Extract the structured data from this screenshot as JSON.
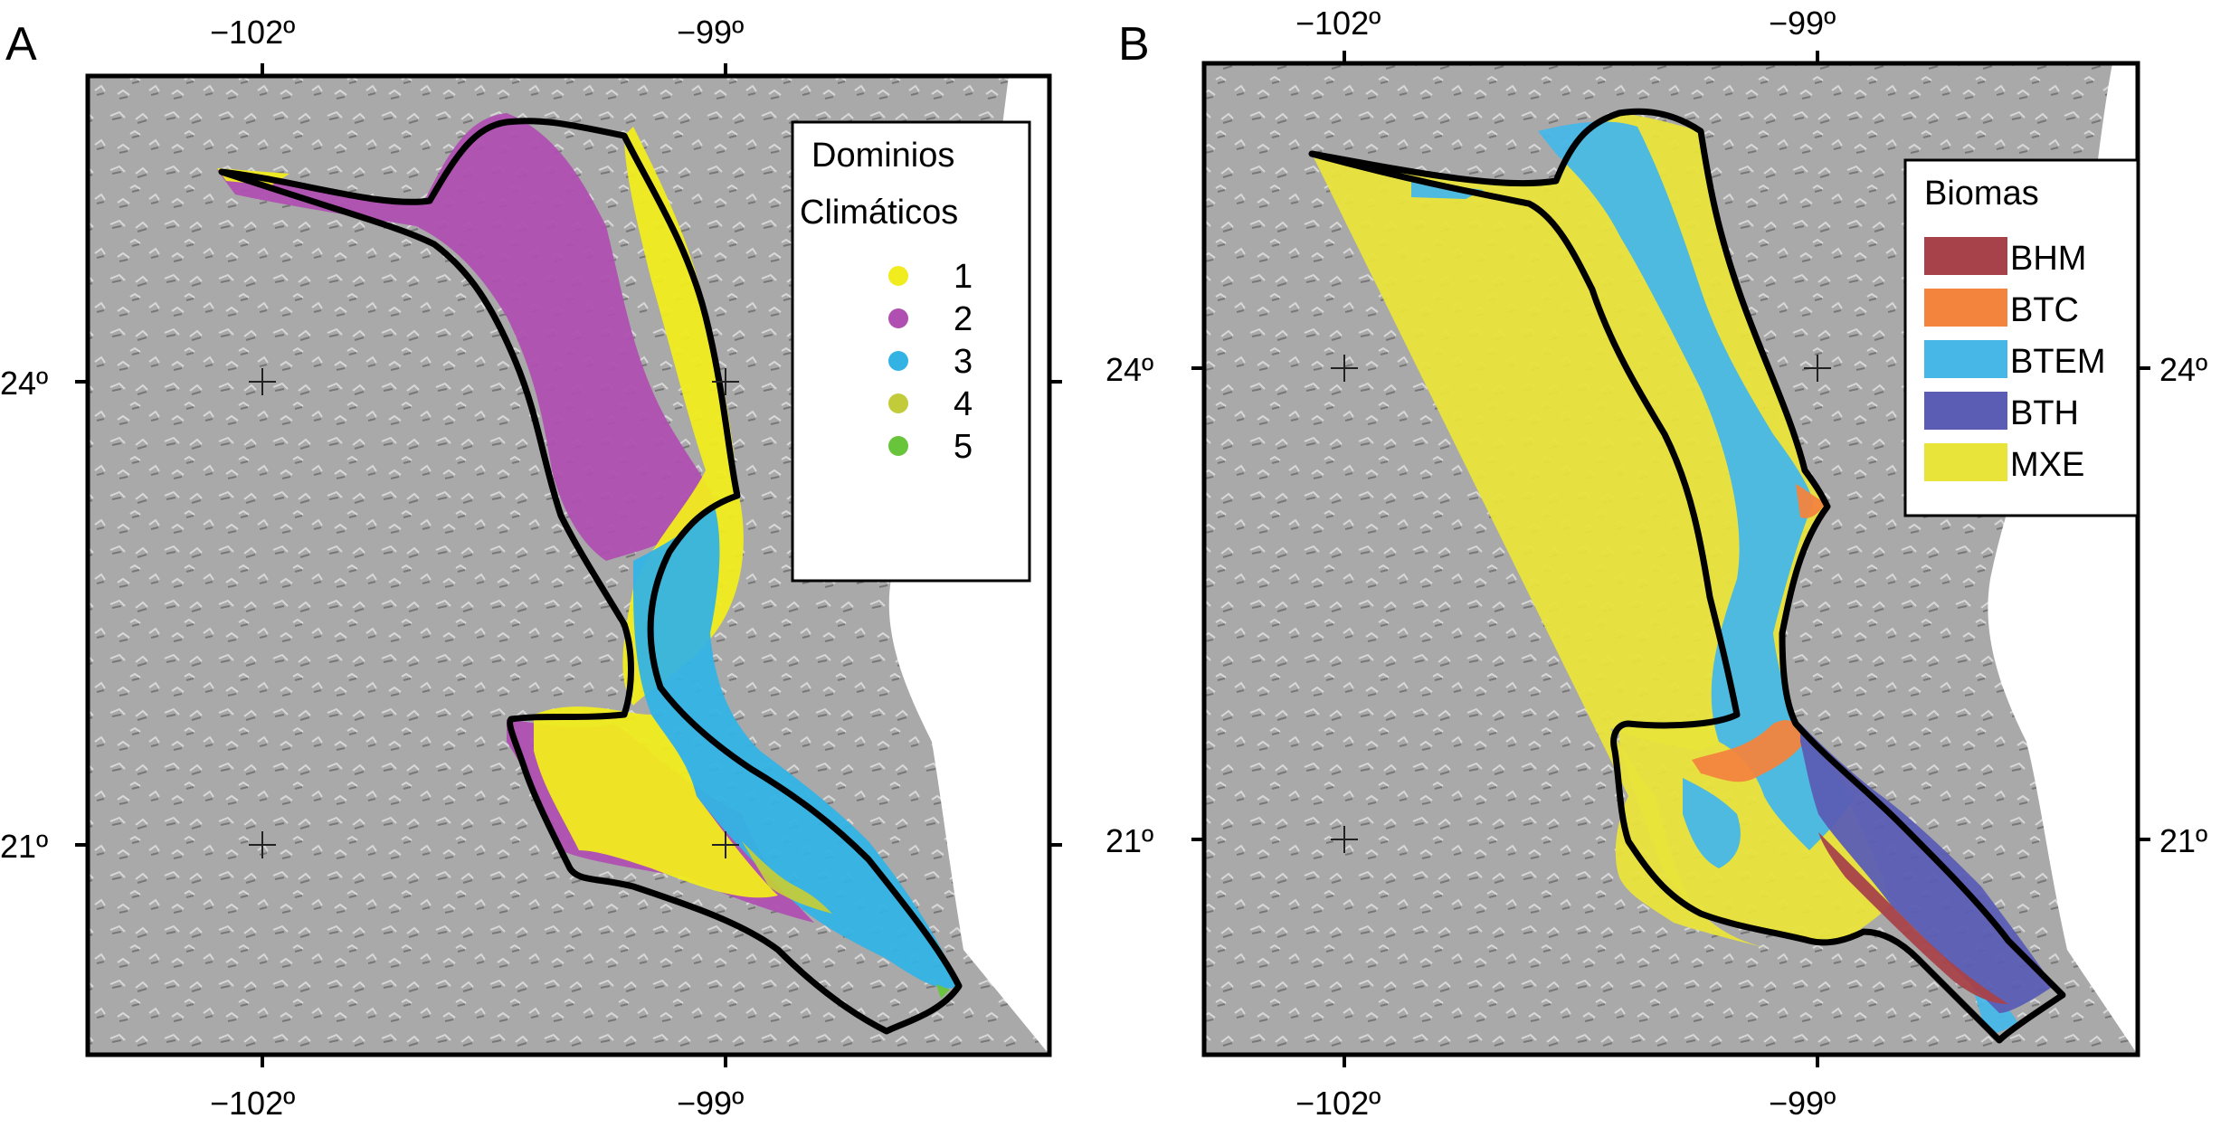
{
  "colors": {
    "terrain": "#a9a9a9",
    "terrain_light": "#cfcfcf",
    "terrain_dark": "#6e6e6e",
    "sea": "#ffffff",
    "boundary": "#000000",
    "domain_1": "#f1ec1d",
    "domain_2": "#b04fb2",
    "domain_3": "#33b3e4",
    "domain_4": "#c2cc3a",
    "domain_5": "#68c43a",
    "BHM": "#a8424a",
    "BTC": "#f2843e",
    "BTEM": "#47b7e8",
    "BTH": "#5b5db5",
    "MXE": "#e9e43a"
  },
  "panels": [
    {
      "letter": "A",
      "top_ticks": [
        "−102º",
        "−99º"
      ],
      "bottom_ticks": [
        "−102º",
        "−99º"
      ],
      "left_ticks": [
        "24º",
        "21º"
      ],
      "right_ticks": [],
      "legend": {
        "title_line1": "Dominios",
        "title_line2": "Climáticos",
        "items": [
          {
            "label": "1",
            "color_key": "domain_1"
          },
          {
            "label": "2",
            "color_key": "domain_2"
          },
          {
            "label": "3",
            "color_key": "domain_3"
          },
          {
            "label": "4",
            "color_key": "domain_4"
          },
          {
            "label": "5",
            "color_key": "domain_5"
          }
        ]
      }
    },
    {
      "letter": "B",
      "top_ticks": [
        "−102º",
        "−99º"
      ],
      "bottom_ticks": [
        "−102º",
        "−99º"
      ],
      "left_ticks": [
        "24º",
        "21º"
      ],
      "right_ticks": [
        "24º",
        "21º"
      ],
      "legend": {
        "title_line1": "Biomas",
        "items": [
          {
            "label": "BHM",
            "color_key": "BHM"
          },
          {
            "label": "BTC",
            "color_key": "BTC"
          },
          {
            "label": "BTEM",
            "color_key": "BTEM"
          },
          {
            "label": "BTH",
            "color_key": "BTH"
          },
          {
            "label": "MXE",
            "color_key": "MXE"
          }
        ]
      }
    }
  ]
}
